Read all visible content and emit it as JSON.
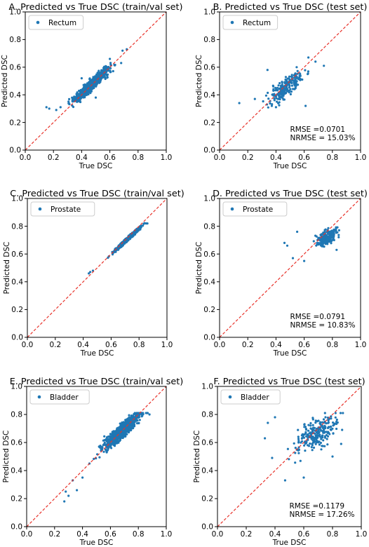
{
  "colors": {
    "point": "#1f77b4",
    "identity_line": "#e8322a",
    "axes": "#000000"
  },
  "chart_data": [
    {
      "type": "scatter",
      "title": "A. Predicted vs True DSC (train/val set)",
      "xlabel": "True DSC",
      "ylabel": "Predicted DSC",
      "xlim": [
        0,
        1
      ],
      "ylim": [
        0,
        1
      ],
      "xticks": [
        "0.0",
        "0.2",
        "0.4",
        "0.6",
        "0.8",
        "1.0"
      ],
      "yticks": [
        "0.0",
        "0.2",
        "0.4",
        "0.6",
        "0.8",
        "1.0"
      ],
      "legend": "Rectum",
      "legend_position": "upper-left",
      "reference_line": "y = x (dashed)",
      "annotations": [],
      "cloud": {
        "seed": 11,
        "n": 700,
        "xmin": 0.14,
        "xmax": 0.78,
        "xmean": 0.47,
        "xsd": 0.12,
        "slope": 0.92,
        "intercept": 0.04,
        "noise": 0.035,
        "ymin": 0.28,
        "ymax": 0.73
      },
      "points": [
        [
          0.15,
          0.31
        ],
        [
          0.22,
          0.29
        ],
        [
          0.25,
          0.31
        ],
        [
          0.72,
          0.73
        ],
        [
          0.69,
          0.72
        ],
        [
          0.17,
          0.3
        ],
        [
          0.68,
          0.63
        ],
        [
          0.6,
          0.66
        ],
        [
          0.4,
          0.52
        ],
        [
          0.5,
          0.38
        ]
      ]
    },
    {
      "type": "scatter",
      "title": "B. Predicted vs True DSC (test set)",
      "xlabel": "True DSC",
      "ylabel": "Predicted DSC",
      "xlim": [
        0,
        1
      ],
      "ylim": [
        0,
        1
      ],
      "xticks": [
        "0.0",
        "0.2",
        "0.4",
        "0.6",
        "0.8",
        "1.0"
      ],
      "yticks": [
        "0.0",
        "0.2",
        "0.4",
        "0.6",
        "0.8",
        "1.0"
      ],
      "legend": "Rectum",
      "legend_position": "upper-left",
      "reference_line": "y = x (dashed)",
      "annotations": [
        "RMSE =0.0701",
        "NRMSE = 15.03%"
      ],
      "cloud": {
        "seed": 23,
        "n": 230,
        "xmin": 0.18,
        "xmax": 0.72,
        "xmean": 0.47,
        "xsd": 0.12,
        "slope": 0.75,
        "intercept": 0.1,
        "noise": 0.06,
        "ymin": 0.28,
        "ymax": 0.7
      },
      "points": [
        [
          0.14,
          0.34
        ],
        [
          0.25,
          0.37
        ],
        [
          0.63,
          0.67
        ],
        [
          0.68,
          0.64
        ],
        [
          0.74,
          0.61
        ],
        [
          0.34,
          0.58
        ],
        [
          0.61,
          0.32
        ]
      ]
    },
    {
      "type": "scatter",
      "title": "C. Predicted vs True DSC (train/val set)",
      "xlabel": "True DSC",
      "ylabel": "Predicted DSC",
      "xlim": [
        0,
        1
      ],
      "ylim": [
        0,
        1
      ],
      "xticks": [
        "0.0",
        "0.2",
        "0.4",
        "0.6",
        "0.8",
        "1.0"
      ],
      "yticks": [
        "0.0",
        "0.2",
        "0.4",
        "0.6",
        "0.8",
        "1.0"
      ],
      "legend": "Prostate",
      "legend_position": "upper-left",
      "reference_line": "y = x (dashed)",
      "annotations": [],
      "cloud": {
        "seed": 37,
        "n": 600,
        "xmin": 0.44,
        "xmax": 0.86,
        "xmean": 0.72,
        "xsd": 0.09,
        "slope": 0.93,
        "intercept": 0.04,
        "noise": 0.012,
        "ymin": 0.44,
        "ymax": 0.83
      },
      "points": [
        [
          0.44,
          0.46
        ],
        [
          0.45,
          0.47
        ],
        [
          0.47,
          0.48
        ],
        [
          0.86,
          0.82
        ],
        [
          0.85,
          0.82
        ]
      ]
    },
    {
      "type": "scatter",
      "title": "D. Predicted vs True DSC (test set)",
      "xlabel": "True DSC",
      "ylabel": "Predicted DSC",
      "xlim": [
        0,
        1
      ],
      "ylim": [
        0,
        1
      ],
      "xticks": [
        "0.0",
        "0.2",
        "0.4",
        "0.6",
        "0.8",
        "1.0"
      ],
      "yticks": [
        "0.0",
        "0.2",
        "0.4",
        "0.6",
        "0.8",
        "1.0"
      ],
      "legend": "Prostate",
      "legend_position": "upper-left",
      "reference_line": "y = x (dashed)",
      "annotations": [
        "RMSE =0.0791",
        "NRMSE = 10.83%"
      ],
      "cloud": {
        "seed": 53,
        "n": 220,
        "xmin": 0.48,
        "xmax": 0.88,
        "xmean": 0.76,
        "xsd": 0.07,
        "slope": 0.45,
        "intercept": 0.38,
        "noise": 0.045,
        "ymin": 0.54,
        "ymax": 0.83
      },
      "points": [
        [
          0.48,
          0.66
        ],
        [
          0.46,
          0.68
        ],
        [
          0.55,
          0.76
        ],
        [
          0.52,
          0.57
        ],
        [
          0.6,
          0.55
        ],
        [
          0.83,
          0.63
        ]
      ]
    },
    {
      "type": "scatter",
      "title": "E. Predicted vs True DSC (train/val set)",
      "xlabel": "True DSC",
      "ylabel": "Predicted DSC",
      "xlim": [
        0,
        1
      ],
      "ylim": [
        0,
        1
      ],
      "xticks": [
        "0.0",
        "0.2",
        "0.4",
        "0.6",
        "0.8",
        "1.0"
      ],
      "yticks": [
        "0.0",
        "0.2",
        "0.4",
        "0.6",
        "0.8",
        "1.0"
      ],
      "legend": "Bladder",
      "legend_position": "upper-left",
      "reference_line": "y = x (dashed)",
      "annotations": [],
      "cloud": {
        "seed": 71,
        "n": 750,
        "xmin": 0.26,
        "xmax": 0.9,
        "xmean": 0.68,
        "xsd": 0.13,
        "slope": 0.9,
        "intercept": 0.07,
        "noise": 0.045,
        "ymin": 0.17,
        "ymax": 0.81
      },
      "points": [
        [
          0.27,
          0.18
        ],
        [
          0.3,
          0.22
        ],
        [
          0.28,
          0.25
        ],
        [
          0.33,
          0.33
        ],
        [
          0.36,
          0.26
        ],
        [
          0.4,
          0.35
        ],
        [
          0.45,
          0.45
        ],
        [
          0.88,
          0.8
        ]
      ]
    },
    {
      "type": "scatter",
      "title": "F. Predicted vs True DSC (test set)",
      "xlabel": "True DSC",
      "ylabel": "Predicted DSC",
      "xlim": [
        0,
        1
      ],
      "ylim": [
        0,
        1
      ],
      "xticks": [
        "0.0",
        "0.2",
        "0.4",
        "0.6",
        "0.8",
        "1.0"
      ],
      "yticks": [
        "0.0",
        "0.2",
        "0.4",
        "0.6",
        "0.8",
        "1.0"
      ],
      "legend": "Bladder",
      "legend_position": "upper-left",
      "reference_line": "y = x (dashed)",
      "annotations": [
        "RMSE =0.1179",
        "NRMSE = 17.26%"
      ],
      "cloud": {
        "seed": 97,
        "n": 240,
        "xmin": 0.3,
        "xmax": 0.9,
        "xmean": 0.68,
        "xsd": 0.14,
        "slope": 0.55,
        "intercept": 0.28,
        "noise": 0.09,
        "ymin": 0.33,
        "ymax": 0.81
      },
      "points": [
        [
          0.33,
          0.63
        ],
        [
          0.35,
          0.74
        ],
        [
          0.4,
          0.78
        ],
        [
          0.38,
          0.49
        ],
        [
          0.47,
          0.33
        ],
        [
          0.6,
          0.35
        ],
        [
          0.86,
          0.59
        ],
        [
          0.8,
          0.5
        ]
      ]
    }
  ]
}
